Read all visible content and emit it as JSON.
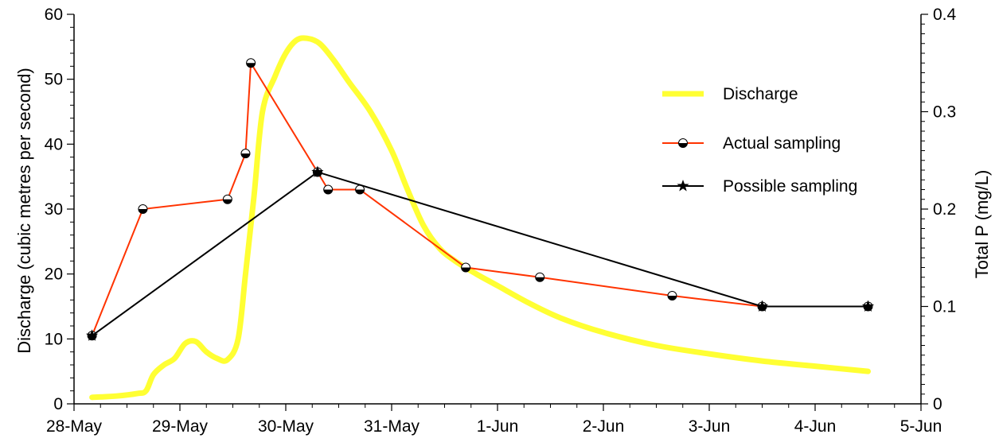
{
  "chart_data": {
    "type": "line",
    "title": "",
    "xlabel": "",
    "ylabel": "Discharge (cubic metres per second)",
    "y2label": "Total P (mg/L)",
    "x_ticks": [
      "28-May",
      "29-May",
      "30-May",
      "31-May",
      "1-Jun",
      "2-Jun",
      "3-Jun",
      "4-Jun",
      "5-Jun"
    ],
    "xlim_days": [
      0,
      8
    ],
    "ylim": [
      0,
      60
    ],
    "y_ticks": [
      "0",
      "10",
      "20",
      "30",
      "40",
      "50",
      "60"
    ],
    "y2lim": [
      0,
      0.4
    ],
    "y2_ticks": [
      "0",
      "0.1",
      "0.2",
      "0.3",
      "0.4"
    ],
    "grid": false,
    "legend_position": "top-right",
    "series": [
      {
        "name": "Discharge",
        "axis": "left",
        "color": "#FFFF33",
        "marker": "none",
        "points": [
          [
            0.17,
            1.0
          ],
          [
            0.4,
            1.2
          ],
          [
            0.6,
            1.6
          ],
          [
            0.68,
            2.0
          ],
          [
            0.75,
            4.5
          ],
          [
            0.85,
            6.0
          ],
          [
            0.95,
            7.0
          ],
          [
            1.05,
            9.3
          ],
          [
            1.15,
            9.6
          ],
          [
            1.25,
            8.0
          ],
          [
            1.35,
            7.0
          ],
          [
            1.45,
            6.8
          ],
          [
            1.55,
            10.0
          ],
          [
            1.62,
            20.0
          ],
          [
            1.7,
            32.0
          ],
          [
            1.78,
            45.0
          ],
          [
            1.9,
            50.5
          ],
          [
            2.0,
            54.0
          ],
          [
            2.1,
            56.0
          ],
          [
            2.2,
            56.3
          ],
          [
            2.32,
            55.5
          ],
          [
            2.45,
            53.0
          ],
          [
            2.6,
            49.5
          ],
          [
            2.8,
            45.0
          ],
          [
            3.0,
            39.0
          ],
          [
            3.15,
            33.0
          ],
          [
            3.3,
            27.5
          ],
          [
            3.45,
            24.0
          ],
          [
            3.6,
            22.0
          ],
          [
            3.8,
            20.0
          ],
          [
            4.0,
            18.2
          ],
          [
            4.3,
            15.5
          ],
          [
            4.6,
            13.2
          ],
          [
            5.0,
            11.0
          ],
          [
            5.5,
            9.0
          ],
          [
            6.0,
            7.7
          ],
          [
            6.5,
            6.6
          ],
          [
            7.0,
            5.8
          ],
          [
            7.5,
            5.0
          ]
        ]
      },
      {
        "name": "Actual sampling",
        "axis": "right",
        "color": "#FF3300",
        "marker": "circle",
        "points": [
          [
            0.17,
            0.07
          ],
          [
            0.65,
            0.2
          ],
          [
            1.45,
            0.21
          ],
          [
            1.62,
            0.257
          ],
          [
            1.67,
            0.35
          ],
          [
            2.3,
            0.238
          ],
          [
            2.4,
            0.22
          ],
          [
            2.7,
            0.22
          ],
          [
            3.7,
            0.14
          ],
          [
            4.4,
            0.13
          ],
          [
            5.65,
            0.111
          ],
          [
            6.5,
            0.1
          ],
          [
            7.5,
            0.1
          ]
        ]
      },
      {
        "name": "Possible sampling",
        "axis": "right",
        "color": "#000000",
        "marker": "star",
        "points": [
          [
            0.17,
            0.07
          ],
          [
            2.3,
            0.238
          ],
          [
            6.5,
            0.1
          ],
          [
            7.5,
            0.1
          ]
        ]
      }
    ]
  }
}
